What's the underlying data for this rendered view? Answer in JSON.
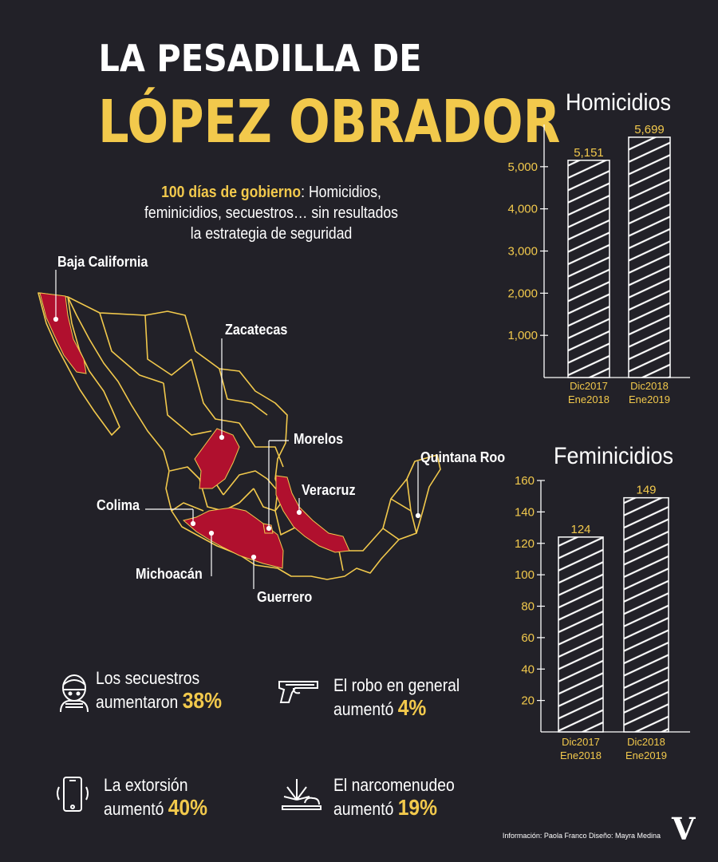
{
  "header": {
    "title_line1": "LA PESADILLA DE",
    "title_line2": "LÓPEZ  OBRADOR",
    "subtitle_bold": "100 días de gobierno",
    "subtitle_rest1": ": Homicidios,",
    "subtitle_line2": "feminicidios, secuestros… sin resultados",
    "subtitle_line3": "la estrategia de seguridad"
  },
  "map": {
    "labels": {
      "baja_california": "Baja California",
      "zacatecas": "Zacatecas",
      "morelos": "Morelos",
      "quintana_roo": "Quintana Roo",
      "veracruz": "Veracruz",
      "colima": "Colima",
      "michoacan": "Michoacán",
      "guerrero": "Guerrero"
    },
    "highlight_color": "#b0102e",
    "outline_color": "#f2c94c"
  },
  "stats": [
    {
      "line1": "Los secuestros",
      "line2": "aumentaron ",
      "pct": "38%",
      "icon": "kidnap-person-icon"
    },
    {
      "line1": "El robo en general",
      "line2": "aumentó ",
      "pct": "4%",
      "icon": "gun-icon"
    },
    {
      "line1": "La extorsión",
      "line2": "aumentó ",
      "pct": "40%",
      "icon": "phone-icon"
    },
    {
      "line1": "El narcomenudeo",
      "line2": "aumentó ",
      "pct": "19%",
      "icon": "cannabis-icon"
    }
  ],
  "footer": {
    "credit": "Información: Paola Franco  Diseño: Mayra Medina",
    "logo": "V"
  },
  "colors": {
    "accent": "#f2c94c",
    "background": "#222128",
    "map_highlight": "#b0102e"
  },
  "chart_data": [
    {
      "type": "bar",
      "title": "Homicidios",
      "categories": [
        "Dic2017 Ene2018",
        "Dic2018 Ene2019"
      ],
      "category_lines": [
        [
          "Dic2017",
          "Ene2018"
        ],
        [
          "Dic2018",
          "Ene2019"
        ]
      ],
      "values": [
        5151,
        5699
      ],
      "value_labels": [
        "5,151",
        "5,699"
      ],
      "yticks": [
        1000,
        2000,
        3000,
        4000,
        5000
      ],
      "ytick_labels": [
        "1,000",
        "2,000",
        "3,000",
        "4,000",
        "5,000"
      ],
      "ylim": [
        0,
        6000
      ]
    },
    {
      "type": "bar",
      "title": "Feminicidios",
      "categories": [
        "Dic2017 Ene2018",
        "Dic2018 Ene2019"
      ],
      "category_lines": [
        [
          "Dic2017",
          "Ene2018"
        ],
        [
          "Dic2018",
          "Ene2019"
        ]
      ],
      "values": [
        124,
        149
      ],
      "value_labels": [
        "124",
        "149"
      ],
      "yticks": [
        20,
        40,
        60,
        80,
        100,
        120,
        140,
        160
      ],
      "ytick_labels": [
        "20",
        "40",
        "60",
        "80",
        "100",
        "120",
        "140",
        "160"
      ],
      "ylim": [
        0,
        160
      ]
    }
  ]
}
